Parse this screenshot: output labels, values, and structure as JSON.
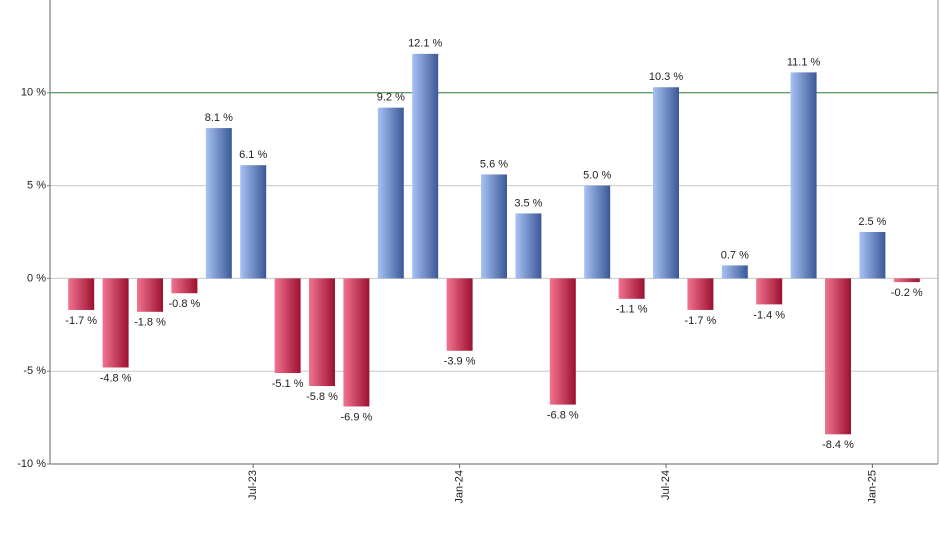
{
  "chart_data": {
    "type": "bar",
    "categories": [
      null,
      null,
      null,
      null,
      null,
      "Jul-23",
      null,
      null,
      null,
      null,
      null,
      "Jan-24",
      null,
      null,
      null,
      null,
      null,
      "Jul-24",
      null,
      null,
      null,
      null,
      null,
      "Jan-25",
      null
    ],
    "values": [
      -1.7,
      -4.8,
      -1.8,
      -0.8,
      8.1,
      6.1,
      -5.1,
      -5.8,
      -6.9,
      9.2,
      12.1,
      -3.9,
      5.6,
      3.5,
      -6.8,
      5.0,
      -1.1,
      10.3,
      -1.7,
      0.7,
      -1.4,
      11.1,
      -8.4,
      2.5,
      -0.2
    ],
    "value_labels": [
      "-1.7 %",
      "-4.8 %",
      "-1.8 %",
      "-0.8 %",
      "8.1 %",
      "6.1 %",
      "-5.1 %",
      "-5.8 %",
      "-6.9 %",
      "9.2 %",
      "12.1 %",
      "-3.9 %",
      "5.6 %",
      "3.5 %",
      "-6.8 %",
      "5.0 %",
      "-1.1 %",
      "10.3 %",
      "-1.7 %",
      "0.7 %",
      "-1.4 %",
      "11.1 %",
      "-8.4 %",
      "2.5 %",
      "-0.2 %"
    ],
    "ylim": [
      -10,
      15
    ],
    "yticks": [
      {
        "value": -10,
        "label": "-10 %"
      },
      {
        "value": -5,
        "label": "-5 %"
      },
      {
        "value": 0,
        "label": "0 %"
      },
      {
        "value": 5,
        "label": "5 %"
      },
      {
        "value": 10,
        "label": "10 %"
      }
    ],
    "grid": true,
    "highlight_line": {
      "value": 10,
      "color": "#2e7d32"
    },
    "positive_colors": [
      "#a8c2f4",
      "#3a5896"
    ],
    "negative_colors": [
      "#f27490",
      "#9c1030"
    ]
  }
}
